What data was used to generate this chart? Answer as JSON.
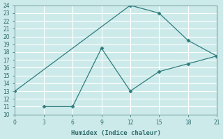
{
  "line1_x": [
    0,
    12,
    15,
    18,
    21
  ],
  "line1_y": [
    13,
    24,
    23,
    19.5,
    17.5
  ],
  "line2_x": [
    3,
    6,
    9,
    12,
    15,
    18,
    21
  ],
  "line2_y": [
    11,
    11,
    18.5,
    13,
    15.5,
    16.5,
    17.5
  ],
  "line_color": "#2e7d7d",
  "marker": "D",
  "marker_size": 2.5,
  "xlabel": "Humidex (Indice chaleur)",
  "xlim": [
    0,
    21
  ],
  "ylim": [
    10,
    24
  ],
  "xticks": [
    0,
    3,
    6,
    9,
    12,
    15,
    18,
    21
  ],
  "yticks": [
    10,
    11,
    12,
    13,
    14,
    15,
    16,
    17,
    18,
    19,
    20,
    21,
    22,
    23,
    24
  ],
  "bg_color": "#cdeaea",
  "grid_color": "#ffffff",
  "font_color": "#2e6b6b"
}
